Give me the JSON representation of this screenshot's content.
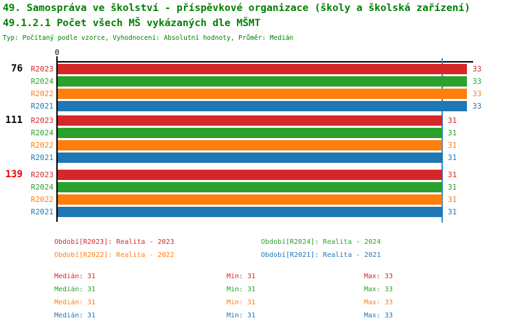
{
  "header": {
    "title": "49. Samospráva ve školství - příspěvkové organizace (školy a školská zařízení)",
    "subtitle": "49.1.2.1 Počet všech MŠ vykázaných dle MŠMT",
    "meta": "Typ: Počítaný podle vzorce, Vyhodnocení: Absolutní hodnoty, Průměr: Medián"
  },
  "colors": {
    "title": "#008000",
    "R2023": "#d62728",
    "R2024": "#2ca02c",
    "R2022": "#ff7f0e",
    "R2021": "#1f77b4",
    "median_line": "#3a87c8",
    "axis": "#000000",
    "group_highlight": "#e60000"
  },
  "chart_data": {
    "type": "bar",
    "orientation": "horizontal",
    "title": "49.1.2.1 Počet všech MŠ vykázaných dle MŠMT",
    "xlabel": "",
    "ylabel": "",
    "xlim": [
      0,
      33.5
    ],
    "grid": false,
    "axis_origin_label": "0",
    "median_line_value": 31,
    "series_order": [
      "R2023",
      "R2024",
      "R2022",
      "R2021"
    ],
    "groups": [
      {
        "label": "76",
        "label_color": "#000000",
        "bars": [
          {
            "series": "R2023",
            "value": 33
          },
          {
            "series": "R2024",
            "value": 33
          },
          {
            "series": "R2022",
            "value": 33
          },
          {
            "series": "R2021",
            "value": 33
          }
        ]
      },
      {
        "label": "111",
        "label_color": "#000000",
        "bars": [
          {
            "series": "R2023",
            "value": 31
          },
          {
            "series": "R2024",
            "value": 31
          },
          {
            "series": "R2022",
            "value": 31
          },
          {
            "series": "R2021",
            "value": 31
          }
        ]
      },
      {
        "label": "139",
        "label_color": "#e60000",
        "bars": [
          {
            "series": "R2023",
            "value": 31
          },
          {
            "series": "R2024",
            "value": 31
          },
          {
            "series": "R2022",
            "value": 31
          },
          {
            "series": "R2021",
            "value": 31
          }
        ]
      }
    ]
  },
  "legend": {
    "items": [
      {
        "label": "Období[R2023]: Realita - 2023",
        "color_key": "R2023"
      },
      {
        "label": "Období[R2024]: Realita - 2024",
        "color_key": "R2024"
      },
      {
        "label": "Období[R2022]: Realita - 2022",
        "color_key": "R2022"
      },
      {
        "label": "Období[R2021]: Realita - 2021",
        "color_key": "R2021"
      }
    ]
  },
  "stats": {
    "rows": [
      {
        "color_key": "R2023",
        "median": "Medián: 31",
        "min": "Min: 31",
        "max": "Max: 33"
      },
      {
        "color_key": "R2024",
        "median": "Medián: 31",
        "min": "Min: 31",
        "max": "Max: 33"
      },
      {
        "color_key": "R2022",
        "median": "Medián: 31",
        "min": "Min: 31",
        "max": "Max: 33"
      },
      {
        "color_key": "R2021",
        "median": "Medián: 31",
        "min": "Min: 31",
        "max": "Max: 33"
      }
    ]
  }
}
